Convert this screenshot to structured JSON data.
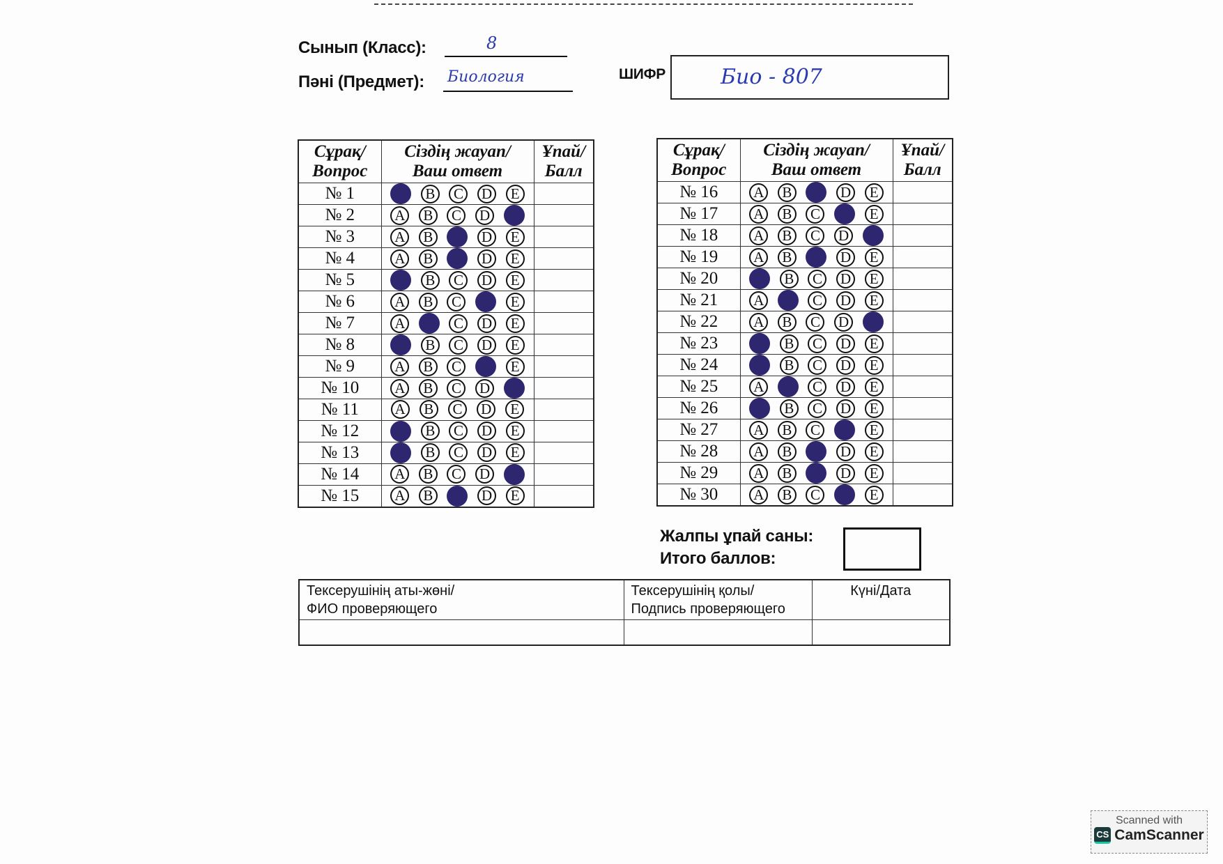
{
  "header": {
    "class_label": "Сынып (Класс):",
    "class_value": "8",
    "subject_label": "Пәні (Предмет):",
    "subject_value": "Биология",
    "cipher_label": "ШИФР",
    "cipher_value": "Био - 807"
  },
  "answer_table": {
    "col_question": [
      "Сұрақ/",
      "Вопрос"
    ],
    "col_answer": [
      "Сіздің жауап/",
      "Ваш ответ"
    ],
    "col_score": [
      "Ұпай/",
      "Балл"
    ],
    "options": [
      "A",
      "B",
      "C",
      "D",
      "E"
    ],
    "fill_color": "#2f2670",
    "rows": [
      {
        "label": "№ 1",
        "marked": "A"
      },
      {
        "label": "№ 2",
        "marked": "E"
      },
      {
        "label": "№ 3",
        "marked": "C"
      },
      {
        "label": "№ 4",
        "marked": "C"
      },
      {
        "label": "№ 5",
        "marked": "A"
      },
      {
        "label": "№ 6",
        "marked": "D"
      },
      {
        "label": "№ 7",
        "marked": "B"
      },
      {
        "label": "№ 8",
        "marked": "A"
      },
      {
        "label": "№ 9",
        "marked": "D"
      },
      {
        "label": "№ 10",
        "marked": "E"
      },
      {
        "label": "№ 11",
        "marked": null
      },
      {
        "label": "№ 12",
        "marked": "A"
      },
      {
        "label": "№ 13",
        "marked": "A"
      },
      {
        "label": "№ 14",
        "marked": "E"
      },
      {
        "label": "№ 15",
        "marked": "C"
      },
      {
        "label": "№ 16",
        "marked": "C"
      },
      {
        "label": "№ 17",
        "marked": "D"
      },
      {
        "label": "№ 18",
        "marked": "E"
      },
      {
        "label": "№ 19",
        "marked": "C"
      },
      {
        "label": "№ 20",
        "marked": "A"
      },
      {
        "label": "№ 21",
        "marked": "B"
      },
      {
        "label": "№ 22",
        "marked": "E"
      },
      {
        "label": "№ 23",
        "marked": "A"
      },
      {
        "label": "№ 24",
        "marked": "A"
      },
      {
        "label": "№ 25",
        "marked": "B"
      },
      {
        "label": "№ 26",
        "marked": "A"
      },
      {
        "label": "№ 27",
        "marked": "D"
      },
      {
        "label": "№ 28",
        "marked": "C"
      },
      {
        "label": "№ 29",
        "marked": "C"
      },
      {
        "label": "№ 30",
        "marked": "D"
      }
    ]
  },
  "total": {
    "label_kz": "Жалпы ұпай саны:",
    "label_ru": "Итого баллов:"
  },
  "checker_table": {
    "name": [
      "Тексерушінің аты-жөні/",
      "ФИО проверяющего"
    ],
    "signature": [
      "Тексерушінің қолы/",
      "Подпись проверяющего"
    ],
    "date": "Күні/Дата"
  },
  "watermark": {
    "line1": "Scanned with",
    "brand": "CamScanner",
    "logo": "CS"
  }
}
